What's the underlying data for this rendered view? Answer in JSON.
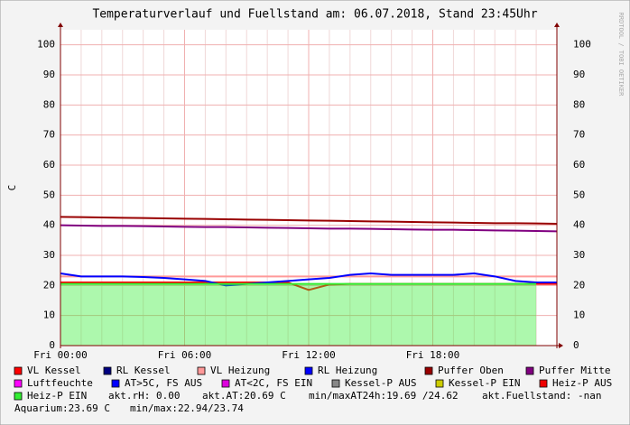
{
  "chart_data": {
    "type": "line",
    "title": "Temperaturverlauf und Fuellstand am: 06.07.2018, Stand 23:45Uhr",
    "y_label": "C",
    "side_label": "RRDTOOL / TOBI OETIKER",
    "x": [
      0,
      1,
      2,
      3,
      4,
      5,
      6,
      7,
      8,
      9,
      10,
      11,
      12,
      13,
      14,
      15,
      16,
      17,
      18,
      19,
      20,
      21,
      22,
      23,
      24
    ],
    "xlim": [
      0,
      24
    ],
    "xticks": [
      {
        "value": 0,
        "label": "Fri 00:00"
      },
      {
        "value": 6,
        "label": "Fri 06:00"
      },
      {
        "value": 12,
        "label": "Fri 12:00"
      },
      {
        "value": 18,
        "label": "Fri 18:00"
      }
    ],
    "ylim": [
      0,
      105
    ],
    "yticks": [
      0,
      10,
      20,
      30,
      40,
      50,
      60,
      70,
      80,
      90,
      100
    ],
    "grid": true,
    "series": [
      {
        "name": "VL Kessel",
        "color": "#ff0000",
        "values": [
          21.0,
          21.0,
          21.0,
          21.0,
          21.0,
          21.0,
          21.0,
          21.0,
          21.0,
          21.0,
          21.0,
          21.0,
          18.5,
          20.3,
          20.5,
          20.5,
          20.5,
          20.5,
          20.5,
          20.5,
          20.5,
          20.5,
          20.5,
          20.5,
          20.5
        ]
      },
      {
        "name": "RL Kessel",
        "color": "#000080",
        "values": [
          null,
          null,
          null,
          null,
          null,
          null,
          null,
          null,
          null,
          null,
          null,
          null,
          null,
          null,
          null,
          null,
          null,
          null,
          null,
          null,
          null,
          null,
          null,
          null,
          null
        ]
      },
      {
        "name": "VL Heizung",
        "color": "#ff9999",
        "values": [
          23.0,
          23.0,
          23.0,
          23.0,
          23.0,
          23.0,
          23.0,
          23.0,
          23.0,
          23.0,
          23.0,
          23.0,
          23.0,
          23.0,
          23.0,
          23.0,
          23.0,
          23.0,
          23.0,
          23.0,
          23.0,
          23.0,
          23.0,
          23.0,
          23.0
        ]
      },
      {
        "name": "RL Heizung",
        "color": "#0000ff",
        "values": [
          24.0,
          23.0,
          23.0,
          23.0,
          22.8,
          22.5,
          22.0,
          21.5,
          20.0,
          20.5,
          21.0,
          21.5,
          22.0,
          22.5,
          23.5,
          24.0,
          23.5,
          23.5,
          23.5,
          23.5,
          24.0,
          23.0,
          21.5,
          21.0,
          21.0
        ]
      },
      {
        "name": "Puffer Oben",
        "color": "#990000",
        "values": [
          42.8,
          42.7,
          42.6,
          42.5,
          42.4,
          42.3,
          42.2,
          42.1,
          42.0,
          41.9,
          41.8,
          41.7,
          41.6,
          41.5,
          41.4,
          41.3,
          41.2,
          41.1,
          41.0,
          40.9,
          40.8,
          40.7,
          40.7,
          40.6,
          40.5
        ]
      },
      {
        "name": "Puffer Mitte",
        "color": "#800080",
        "values": [
          40.0,
          39.9,
          39.8,
          39.8,
          39.7,
          39.6,
          39.5,
          39.4,
          39.4,
          39.3,
          39.2,
          39.1,
          39.0,
          38.9,
          38.9,
          38.8,
          38.7,
          38.6,
          38.5,
          38.5,
          38.4,
          38.3,
          38.2,
          38.1,
          38.0
        ]
      },
      {
        "name": "Luftfeuchte",
        "color": "#ff00ff",
        "values": [
          null,
          null,
          null,
          null,
          null,
          null,
          null,
          null,
          null,
          null,
          null,
          null,
          null,
          null,
          null,
          null,
          null,
          null,
          null,
          null,
          null,
          null,
          null,
          null,
          null
        ]
      },
      {
        "name": "AT>5C, FS AUS",
        "color": "#0000ff",
        "values": [
          null,
          null,
          null,
          null,
          null,
          null,
          null,
          null,
          null,
          null,
          null,
          null,
          null,
          null,
          null,
          null,
          null,
          null,
          null,
          null,
          null,
          null,
          null,
          null,
          null
        ]
      },
      {
        "name": "AT<2C, FS EIN",
        "color": "#dd00dd",
        "values": [
          null,
          null,
          null,
          null,
          null,
          null,
          null,
          null,
          null,
          null,
          null,
          null,
          null,
          null,
          null,
          null,
          null,
          null,
          null,
          null,
          null,
          null,
          null,
          null,
          null
        ]
      },
      {
        "name": "Kessel-P AUS",
        "color": "#888888",
        "values": [
          null,
          null,
          null,
          null,
          null,
          null,
          null,
          null,
          null,
          null,
          null,
          null,
          null,
          null,
          null,
          null,
          null,
          null,
          null,
          null,
          null,
          null,
          null,
          null,
          null
        ]
      },
      {
        "name": "Kessel-P EIN",
        "color": "#cccc00",
        "values": [
          null,
          null,
          null,
          null,
          null,
          null,
          null,
          null,
          null,
          null,
          null,
          null,
          null,
          null,
          null,
          null,
          null,
          null,
          null,
          null,
          null,
          null,
          null,
          null,
          null
        ]
      },
      {
        "name": "Heiz-P AUS",
        "color": "#ee0000",
        "values": [
          null,
          null,
          null,
          null,
          null,
          null,
          null,
          null,
          null,
          null,
          null,
          null,
          null,
          null,
          null,
          null,
          null,
          null,
          null,
          null,
          null,
          null,
          null,
          null,
          null
        ]
      },
      {
        "name": "Heiz-P EIN",
        "color": "#33ee33",
        "area": true,
        "values": [
          20.5,
          20.5,
          20.5,
          20.5,
          20.5,
          20.5,
          20.5,
          20.5,
          20.5,
          20.5,
          20.5,
          20.5,
          20.5,
          20.5,
          20.5,
          20.5,
          20.5,
          20.5,
          20.5,
          20.5,
          20.5,
          20.5,
          20.5,
          20.5,
          null
        ]
      }
    ],
    "notes": [
      "akt.rH: 0.00",
      "akt.AT:20.69 C",
      "min/maxAT24h:19.69 /24.62",
      "akt.Fuellstand: -nan",
      "Aquarium:23.69 C",
      "min/max:22.94/23.74"
    ]
  }
}
